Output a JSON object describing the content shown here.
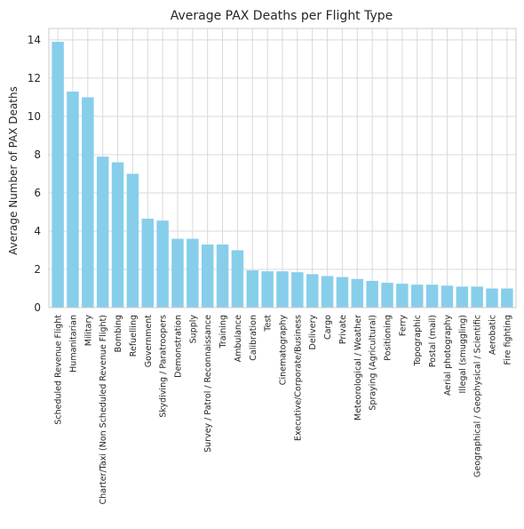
{
  "chart_data": {
    "type": "bar",
    "title": "Average PAX Deaths per Flight Type",
    "xlabel": "",
    "ylabel": "Average Number of PAX Deaths",
    "ylim": [
      0,
      14.6
    ],
    "yticks": [
      0,
      2,
      4,
      6,
      8,
      10,
      12,
      14
    ],
    "grid": true,
    "bar_color": "#87CEEB",
    "categories": [
      "Scheduled Revenue Flight",
      "Humanitarian",
      "Military",
      "Charter/Taxi (Non Scheduled Revenue Flight)",
      "Bombing",
      "Refuelling",
      "Government",
      "Skydiving / Paratroopers",
      "Demonstration",
      "Supply",
      "Survey / Patrol / Reconnaissance",
      "Training",
      "Ambulance",
      "Calibration",
      "Test",
      "Cinematography",
      "Executive/Corporate/Business",
      "Delivery",
      "Cargo",
      "Private",
      "Meteorological / Weather",
      "Spraying (Agricultural)",
      "Positioning",
      "Ferry",
      "Topographic",
      "Postal (mail)",
      "Aerial photography",
      "Illegal (smuggling)",
      "Geographical / Geophysical / Scientific",
      "Aerobatic",
      "Fire fighting"
    ],
    "values": [
      13.9,
      11.3,
      11.0,
      7.9,
      7.6,
      7.0,
      4.65,
      4.55,
      3.6,
      3.6,
      3.3,
      3.3,
      3.0,
      1.95,
      1.9,
      1.9,
      1.85,
      1.75,
      1.65,
      1.6,
      1.5,
      1.4,
      1.3,
      1.25,
      1.2,
      1.2,
      1.15,
      1.1,
      1.1,
      1.0,
      1.0
    ]
  }
}
